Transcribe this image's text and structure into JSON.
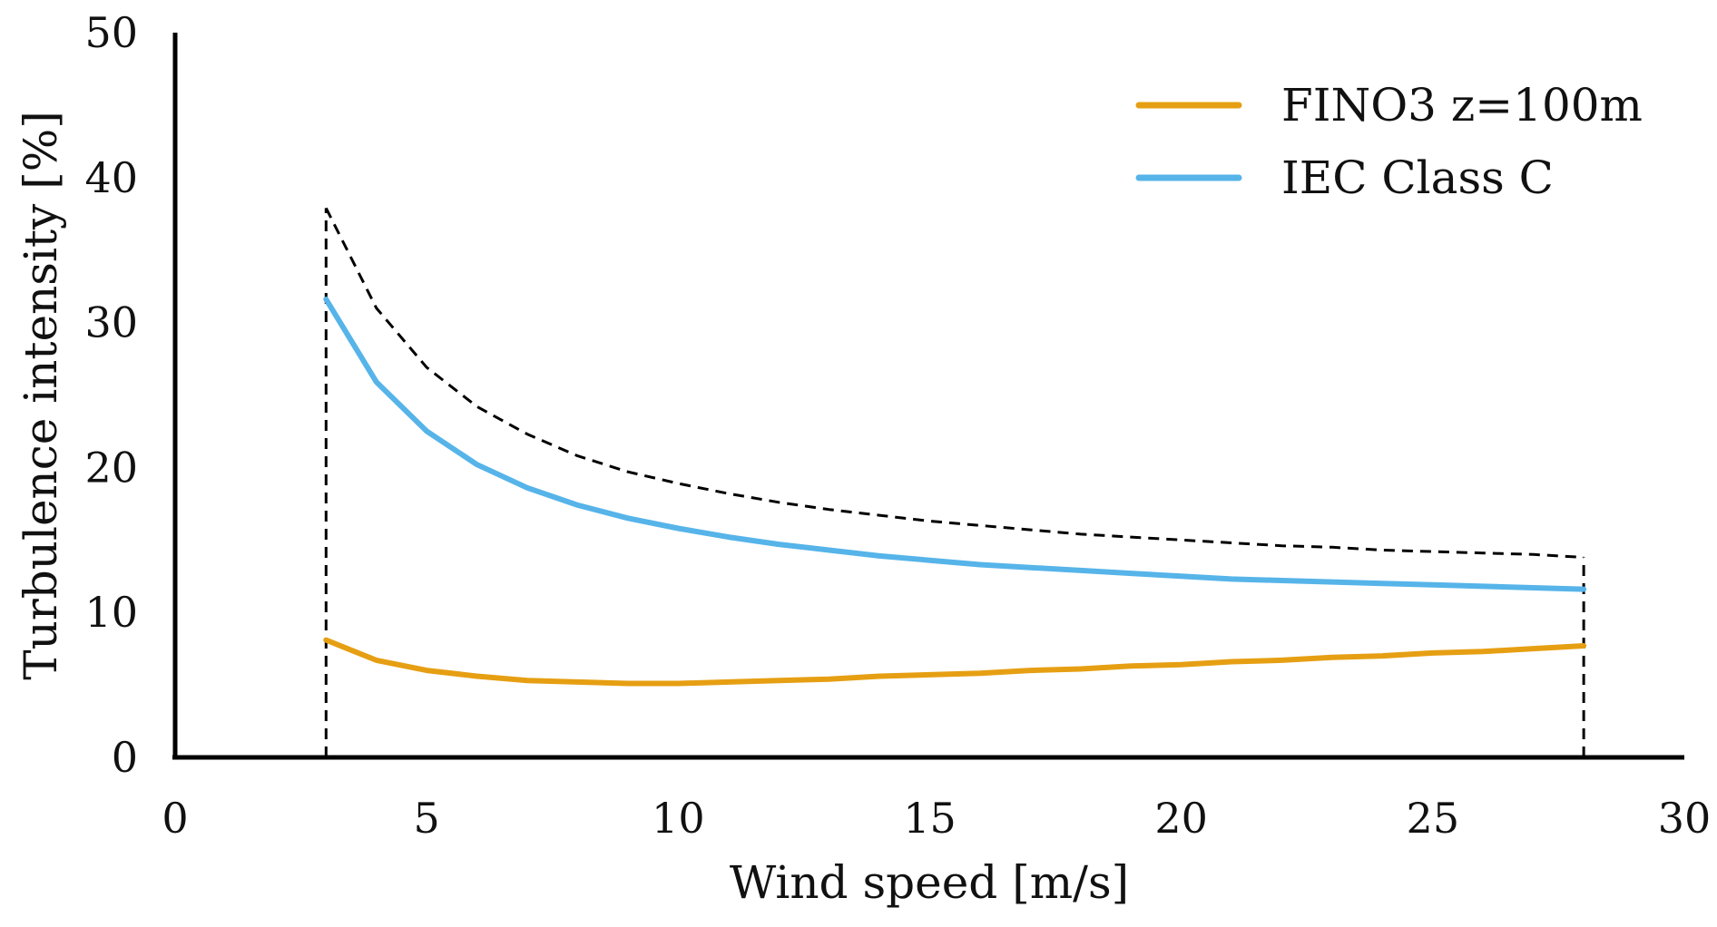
{
  "chart_data": {
    "type": "line",
    "xlabel": "Wind speed [m/s]",
    "ylabel": "Turbulence intensity [%]",
    "xlim": [
      0,
      30
    ],
    "ylim": [
      0,
      50
    ],
    "xticks": [
      0,
      5,
      10,
      15,
      20,
      25,
      30
    ],
    "yticks": [
      0,
      10,
      20,
      30,
      40,
      50
    ],
    "grid": false,
    "legend_position": "top-right",
    "series": [
      {
        "name": "FINO3 z=100m",
        "color": "#E69F13",
        "style": "solid",
        "x": [
          3,
          4,
          5,
          6,
          7,
          8,
          9,
          10,
          11,
          12,
          13,
          14,
          15,
          16,
          17,
          18,
          19,
          20,
          21,
          22,
          23,
          24,
          25,
          26,
          27,
          28
        ],
        "y": [
          8.1,
          6.7,
          6.0,
          5.6,
          5.3,
          5.2,
          5.1,
          5.1,
          5.2,
          5.3,
          5.4,
          5.6,
          5.7,
          5.8,
          6.0,
          6.1,
          6.3,
          6.4,
          6.6,
          6.7,
          6.9,
          7.0,
          7.2,
          7.3,
          7.5,
          7.7
        ]
      },
      {
        "name": "IEC Class C",
        "color": "#56B4E9",
        "style": "solid",
        "x": [
          3,
          4,
          5,
          6,
          7,
          8,
          9,
          10,
          11,
          12,
          13,
          14,
          15,
          16,
          17,
          18,
          19,
          20,
          21,
          22,
          23,
          24,
          25,
          26,
          27,
          28
        ],
        "y": [
          31.6,
          25.9,
          22.5,
          20.2,
          18.6,
          17.4,
          16.5,
          15.8,
          15.2,
          14.7,
          14.3,
          13.9,
          13.6,
          13.3,
          13.1,
          12.9,
          12.7,
          12.5,
          12.3,
          12.2,
          12.1,
          12.0,
          11.9,
          11.8,
          11.7,
          11.6
        ]
      },
      {
        "color": "#000000",
        "style": "dashed",
        "x": [
          3,
          4,
          5,
          6,
          7,
          8,
          9,
          10,
          11,
          12,
          13,
          14,
          15,
          16,
          17,
          18,
          19,
          20,
          21,
          22,
          23,
          24,
          25,
          26,
          27,
          28
        ],
        "y": [
          37.9,
          31.0,
          26.9,
          24.2,
          22.3,
          20.8,
          19.7,
          18.9,
          18.2,
          17.6,
          17.1,
          16.7,
          16.3,
          16.0,
          15.7,
          15.4,
          15.2,
          15.0,
          14.8,
          14.6,
          14.5,
          14.3,
          14.2,
          14.1,
          14.0,
          13.8
        ]
      }
    ],
    "bound_lines": [
      {
        "x": 3,
        "y_top": 37.9,
        "style": "dashed",
        "color": "#000000"
      },
      {
        "x": 28,
        "y_top": 13.8,
        "style": "dashed",
        "color": "#000000"
      }
    ]
  }
}
